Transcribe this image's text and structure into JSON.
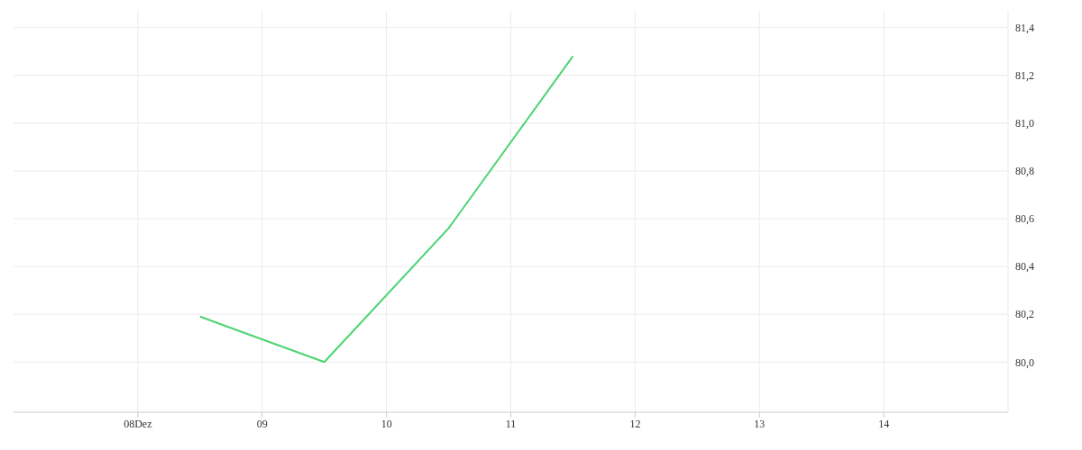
{
  "chart_data": {
    "type": "line",
    "x": [
      8.5,
      9.5,
      10.5,
      11.5
    ],
    "series": [
      {
        "color": "#4cd473",
        "values": [
          80.19,
          80.0,
          80.56,
          81.28
        ]
      }
    ],
    "xlim": [
      7,
      15
    ],
    "xticks": [
      {
        "value": 8,
        "label": "08Dez"
      },
      {
        "value": 9,
        "label": "09"
      },
      {
        "value": 10,
        "label": "10"
      },
      {
        "value": 11,
        "label": "11"
      },
      {
        "value": 12,
        "label": "12"
      },
      {
        "value": 13,
        "label": "13"
      },
      {
        "value": 14,
        "label": "14"
      }
    ],
    "ylim": [
      79.79,
      81.47
    ],
    "yticks": [
      {
        "value": 80.0,
        "label": "80,0"
      },
      {
        "value": 80.2,
        "label": "80,2"
      },
      {
        "value": 80.4,
        "label": "80,4"
      },
      {
        "value": 80.6,
        "label": "80,6"
      },
      {
        "value": 80.8,
        "label": "80,8"
      },
      {
        "value": 81.0,
        "label": "81,0"
      },
      {
        "value": 81.2,
        "label": "81,2"
      },
      {
        "value": 81.4,
        "label": "81,4"
      }
    ],
    "grid": true,
    "marker": "none",
    "line_style": "solid",
    "legend": false
  }
}
